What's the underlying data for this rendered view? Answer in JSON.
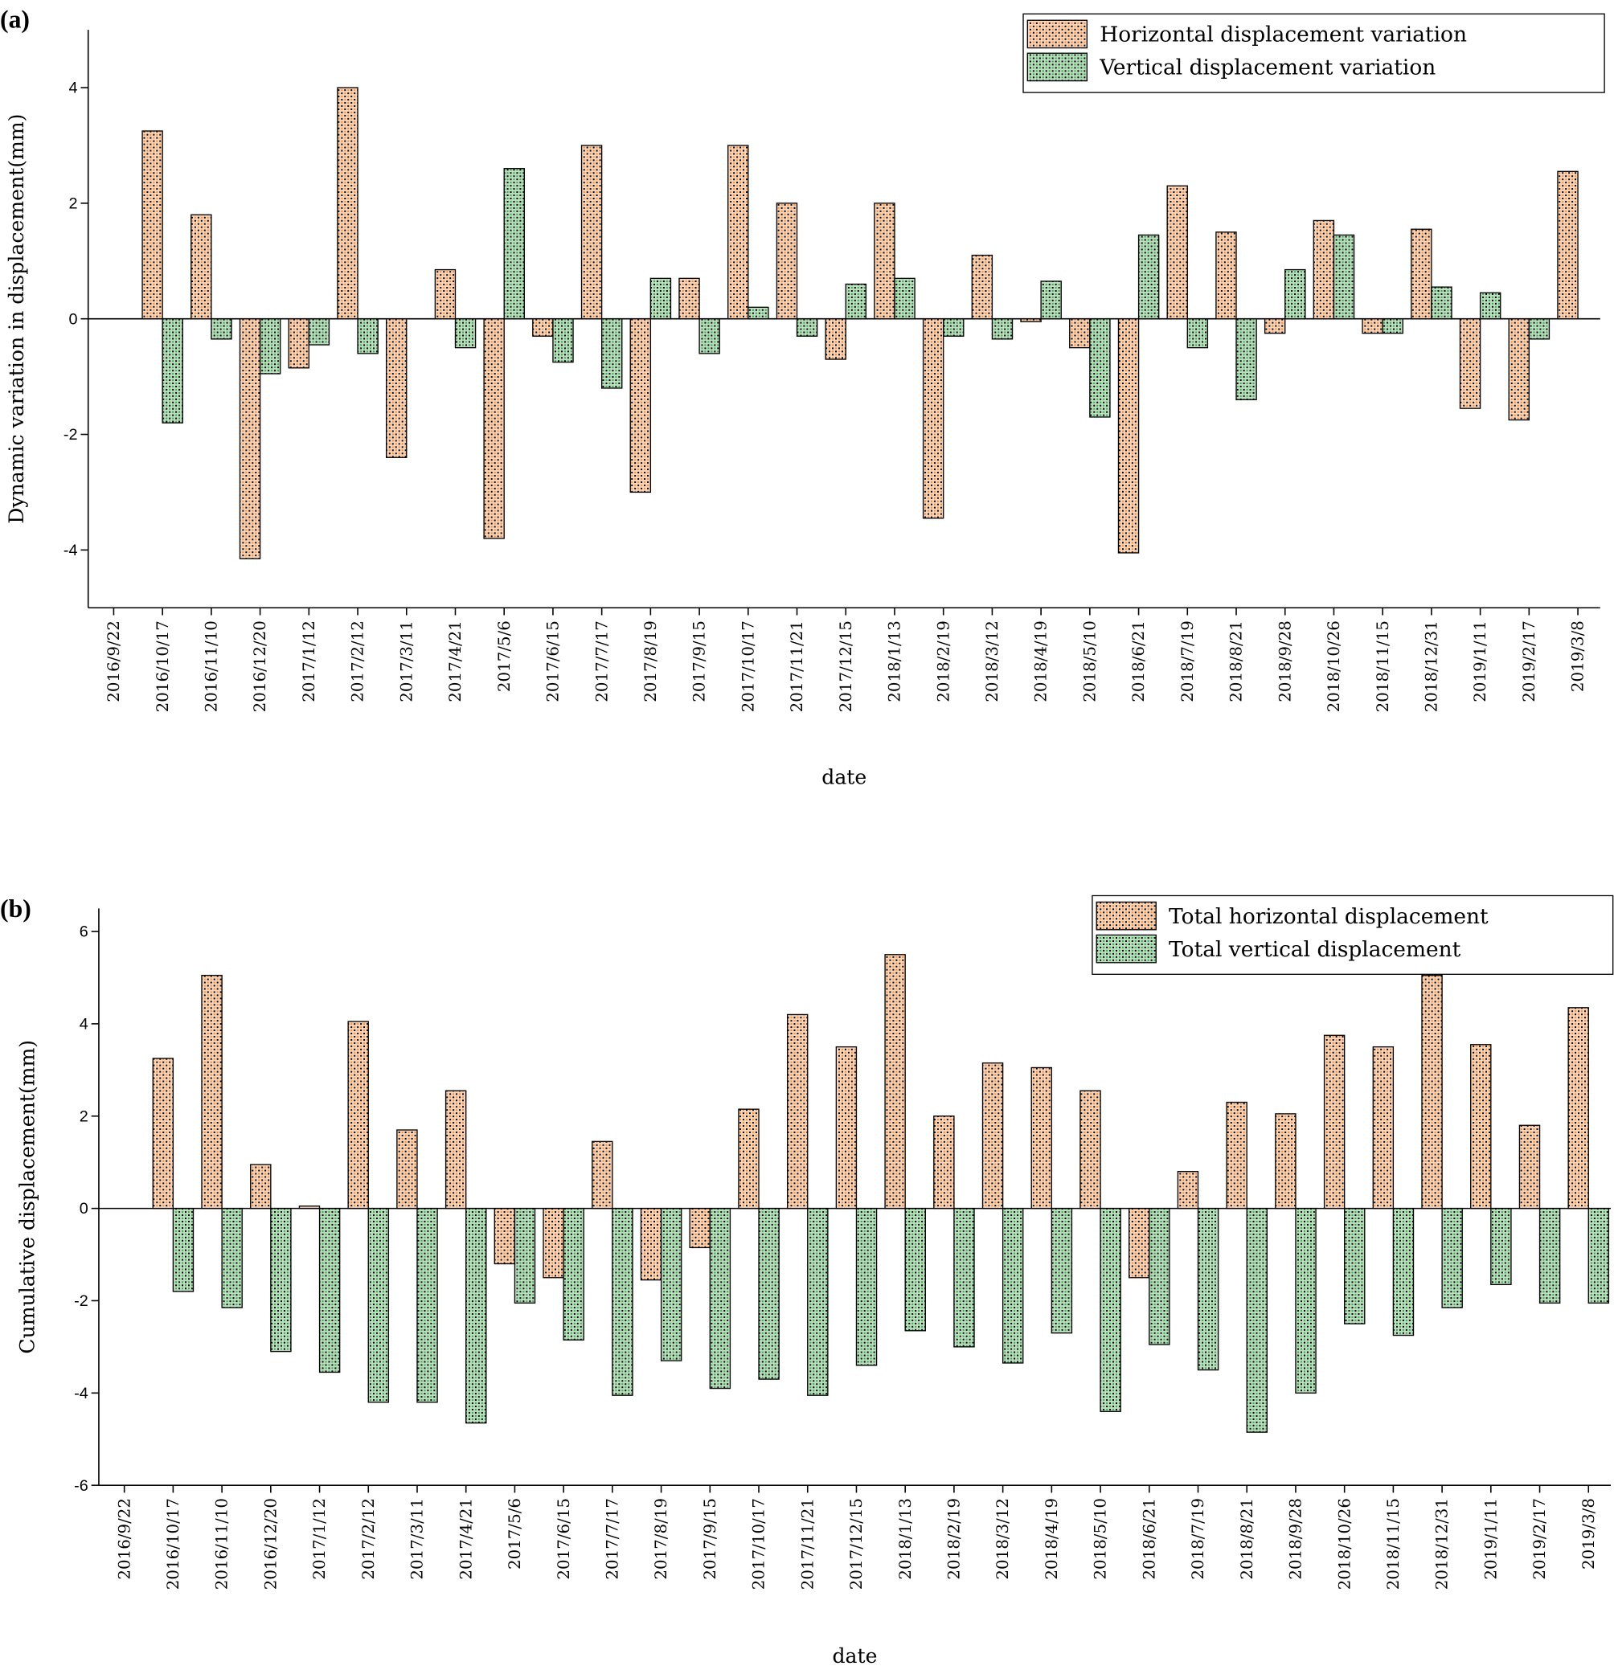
{
  "chart_data": [
    {
      "type": "bar",
      "title": "(a)",
      "x_label": "date",
      "y_label": "Dynamic variation in displacement(mm)",
      "categories": [
        "2016/9/22",
        "2016/10/17",
        "2016/11/10",
        "2016/12/20",
        "2017/1/12",
        "2017/2/12",
        "2017/3/11",
        "2017/4/21",
        "2017/5/6",
        "2017/6/15",
        "2017/7/17",
        "2017/8/19",
        "2017/9/15",
        "2017/10/17",
        "2017/11/21",
        "2017/12/15",
        "2018/1/13",
        "2018/2/19",
        "2018/3/12",
        "2018/4/19",
        "2018/5/10",
        "2018/6/21",
        "2018/7/19",
        "2018/8/21",
        "2018/9/28",
        "2018/10/26",
        "2018/11/15",
        "2018/12/31",
        "2019/1/11",
        "2019/2/17",
        "2019/3/8"
      ],
      "series": [
        {
          "name": "Horizontal displacement variation",
          "color": "#f08a3c",
          "values": [
            0,
            3.25,
            1.8,
            -4.15,
            -0.85,
            4.0,
            -2.4,
            0.85,
            -3.8,
            -0.3,
            3.0,
            -3.0,
            0.7,
            3.0,
            2.0,
            -0.7,
            2.0,
            -3.45,
            1.1,
            -0.05,
            -0.5,
            -4.05,
            2.3,
            1.5,
            -0.25,
            1.7,
            -0.25,
            1.55,
            -1.55,
            -1.75,
            2.55
          ]
        },
        {
          "name": "Vertical displacement variation",
          "color": "#3fa34d",
          "values": [
            0,
            -1.8,
            -0.35,
            -0.95,
            -0.45,
            -0.6,
            0,
            -0.5,
            2.6,
            -0.75,
            -1.2,
            0.7,
            -0.6,
            0.2,
            -0.3,
            0.6,
            0.7,
            -0.3,
            -0.35,
            0.65,
            -1.7,
            1.45,
            -0.5,
            -1.4,
            0.85,
            1.45,
            -0.25,
            0.55,
            0.45,
            -0.35,
            0
          ]
        }
      ],
      "ylim": [
        -5,
        5
      ],
      "yticks": [
        -4,
        -2,
        0,
        2,
        4
      ],
      "legend": "upper right"
    },
    {
      "type": "bar",
      "title": "(b)",
      "x_label": "date",
      "y_label": "Cumulative displacement(mm)",
      "categories": [
        "2016/9/22",
        "2016/10/17",
        "2016/11/10",
        "2016/12/20",
        "2017/1/12",
        "2017/2/12",
        "2017/3/11",
        "2017/4/21",
        "2017/5/6",
        "2017/6/15",
        "2017/7/17",
        "2017/8/19",
        "2017/9/15",
        "2017/10/17",
        "2017/11/21",
        "2017/12/15",
        "2018/1/13",
        "2018/2/19",
        "2018/3/12",
        "2018/4/19",
        "2018/5/10",
        "2018/6/21",
        "2018/7/19",
        "2018/8/21",
        "2018/9/28",
        "2018/10/26",
        "2018/11/15",
        "2018/12/31",
        "2019/1/11",
        "2019/2/17",
        "2019/3/8"
      ],
      "series": [
        {
          "name": "Total horizontal displacement",
          "color": "#f08a3c",
          "values": [
            0,
            3.25,
            5.05,
            0.95,
            0.05,
            4.05,
            1.7,
            2.55,
            -1.2,
            -1.5,
            1.45,
            -1.55,
            -0.85,
            2.15,
            4.2,
            3.5,
            5.5,
            2.0,
            3.15,
            3.05,
            2.55,
            -1.5,
            0.8,
            2.3,
            2.05,
            3.75,
            3.5,
            5.05,
            3.55,
            1.8,
            4.35
          ]
        },
        {
          "name": "Total vertical displacement",
          "color": "#3fa34d",
          "values": [
            0,
            -1.8,
            -2.15,
            -3.1,
            -3.55,
            -4.2,
            -4.2,
            -4.65,
            -2.05,
            -2.85,
            -4.05,
            -3.3,
            -3.9,
            -3.7,
            -4.05,
            -3.4,
            -2.65,
            -3.0,
            -3.35,
            -2.7,
            -4.4,
            -2.95,
            -3.5,
            -4.85,
            -4.0,
            -2.5,
            -2.75,
            -2.15,
            -1.65,
            -2.05,
            -2.05
          ]
        }
      ],
      "ylim": [
        -6,
        6.5
      ],
      "yticks": [
        -6,
        -4,
        -2,
        0,
        2,
        4,
        6
      ],
      "legend": "upper right"
    }
  ]
}
